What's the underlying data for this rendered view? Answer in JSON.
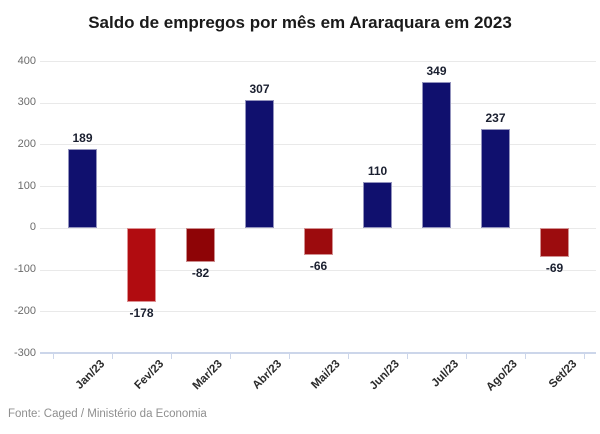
{
  "title": "Saldo de empregos por mês em Araraquara em 2023",
  "source_note": "Fonte: Caged / Ministério da Economia",
  "colors": {
    "positive_bar": "#10106e",
    "grid_line": "#e9e9e9",
    "axis_line": "#ccd6ea",
    "value_label": "#1b2030",
    "y_tick_label": "#6b6b6b",
    "x_tick_label": "#2b2b2b",
    "title_text": "#1a1a1a",
    "source_text": "#8f8f8f"
  },
  "chart_data": {
    "type": "bar",
    "title": "Saldo de empregos por mês em Araraquara em 2023",
    "categories": [
      "Jan/23",
      "Fev/23",
      "Mar/23",
      "Abr/23",
      "Mai/23",
      "Jun/23",
      "Jul/23",
      "Ago/23",
      "Set/23"
    ],
    "values": [
      189,
      -178,
      -82,
      307,
      -66,
      110,
      349,
      237,
      -69
    ],
    "value_labels": [
      "189",
      "-178",
      "-82",
      "307",
      "-66",
      "110",
      "349",
      "237",
      "-69"
    ],
    "bar_colors": [
      "#10106e",
      "#b10c10",
      "#8e0406",
      "#10106e",
      "#9c0b0d",
      "#10106e",
      "#10106e",
      "#10106e",
      "#9c0c0e"
    ],
    "xlabel": "",
    "ylabel": "",
    "ylim": [
      -300,
      400
    ],
    "yticks": [
      400,
      300,
      200,
      100,
      0,
      -100,
      -200,
      -300
    ],
    "grid": true,
    "legend": false,
    "source": "Fonte: Caged / Ministério da Economia"
  }
}
